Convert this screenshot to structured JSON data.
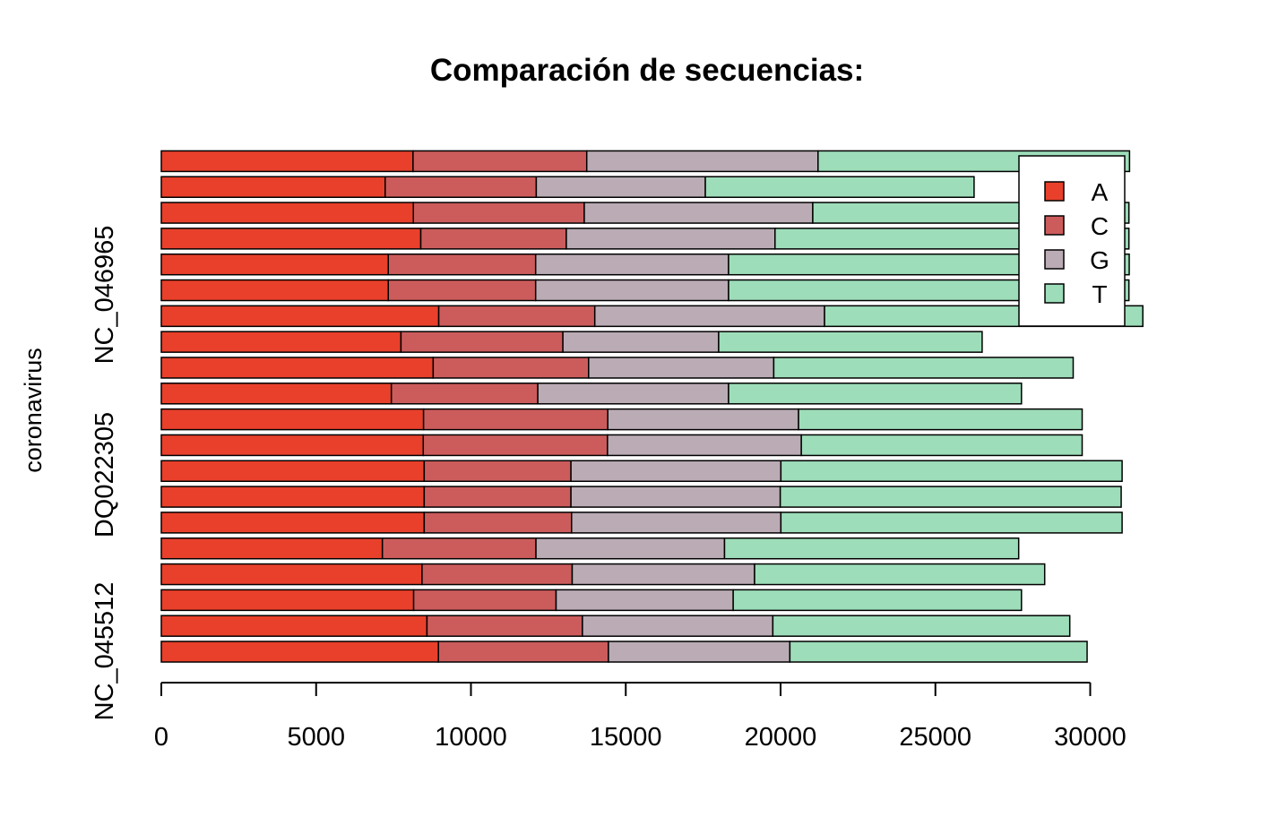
{
  "chart_data": {
    "type": "bar",
    "orientation": "horizontal",
    "stacked": true,
    "title": "Comparación de secuencias:",
    "ylabel": "coronavirus",
    "category_labels": [
      "NC_045512",
      "DQ022305",
      "NC_046965"
    ],
    "xticks": [
      "0",
      "5000",
      "10000",
      "15000",
      "20000",
      "25000",
      "30000"
    ],
    "xlim": [
      0,
      32000
    ],
    "grid": false,
    "legend": {
      "position": "top-right",
      "entries": [
        "A",
        "C",
        "G",
        "T"
      ]
    },
    "colors": {
      "A": "#E8402B",
      "C": "#CC5C5C",
      "G": "#BAABB5",
      "T": "#9DDDB9"
    },
    "bars_bottom_to_top": [
      {
        "A": 8950,
        "C": 5490,
        "G": 5860,
        "T": 9600
      },
      {
        "A": 8580,
        "C": 5020,
        "G": 6150,
        "T": 9590
      },
      {
        "A": 8150,
        "C": 4600,
        "G": 5720,
        "T": 9310
      },
      {
        "A": 8420,
        "C": 4850,
        "G": 5890,
        "T": 9370
      },
      {
        "A": 7140,
        "C": 4960,
        "G": 6090,
        "T": 9500
      },
      {
        "A": 8490,
        "C": 4760,
        "G": 6760,
        "T": 11020
      },
      {
        "A": 8490,
        "C": 4740,
        "G": 6760,
        "T": 11010
      },
      {
        "A": 8490,
        "C": 4740,
        "G": 6780,
        "T": 11020
      },
      {
        "A": 8460,
        "C": 5950,
        "G": 6260,
        "T": 9070
      },
      {
        "A": 8470,
        "C": 5950,
        "G": 6160,
        "T": 9160
      },
      {
        "A": 7430,
        "C": 4730,
        "G": 6160,
        "T": 9460
      },
      {
        "A": 8780,
        "C": 5020,
        "G": 5980,
        "T": 9670
      },
      {
        "A": 7740,
        "C": 5230,
        "G": 5030,
        "T": 8510
      },
      {
        "A": 8960,
        "C": 5040,
        "G": 7420,
        "T": 10280
      },
      {
        "A": 7330,
        "C": 4760,
        "G": 6230,
        "T": 12930
      },
      {
        "A": 7330,
        "C": 4760,
        "G": 6230,
        "T": 12940
      },
      {
        "A": 8380,
        "C": 4700,
        "G": 6740,
        "T": 11430
      },
      {
        "A": 8140,
        "C": 5520,
        "G": 7380,
        "T": 10210
      },
      {
        "A": 7230,
        "C": 4880,
        "G": 5460,
        "T": 8680
      },
      {
        "A": 8130,
        "C": 5610,
        "G": 7470,
        "T": 10060
      }
    ]
  }
}
